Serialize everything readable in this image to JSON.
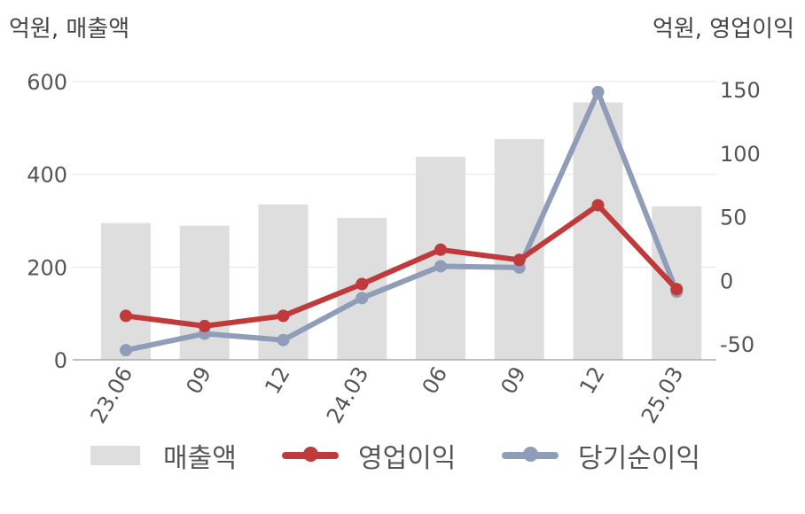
{
  "units": {
    "left": "억원, 매출액",
    "right": "억원, 영업이익"
  },
  "legend": {
    "bar": "매출액",
    "line1": "영업이익",
    "line2": "당기순이익"
  },
  "colors": {
    "bar": "#dedede",
    "line1": "#c0393b",
    "line2": "#8f9db8",
    "grid": "#e6e6e6",
    "axis": "#aaaaaa"
  },
  "chart_data": {
    "type": "bar",
    "categories": [
      "23.06",
      "09",
      "12",
      "24.03",
      "06",
      "09",
      "12",
      "25.03"
    ],
    "series": [
      {
        "name": "매출액",
        "type": "bar",
        "axis": "left",
        "values": [
          295,
          289,
          335,
          306,
          438,
          476,
          555,
          331
        ]
      },
      {
        "name": "영업이익",
        "type": "line",
        "axis": "right",
        "values": [
          -28,
          -36,
          -28,
          -3,
          24,
          16,
          59,
          -7
        ]
      },
      {
        "name": "당기순이익",
        "type": "line",
        "axis": "right",
        "values": [
          -55,
          -42,
          -47,
          -14,
          11,
          10,
          148,
          -9
        ]
      }
    ],
    "y_left": {
      "ticks": [
        "0",
        "200",
        "400",
        "600"
      ],
      "range": [
        0,
        600
      ]
    },
    "y_right": {
      "ticks": [
        "-50",
        "0",
        "50",
        "100",
        "150"
      ],
      "range": [
        -62,
        158
      ]
    },
    "grid": true,
    "legend_position": "bottom"
  }
}
